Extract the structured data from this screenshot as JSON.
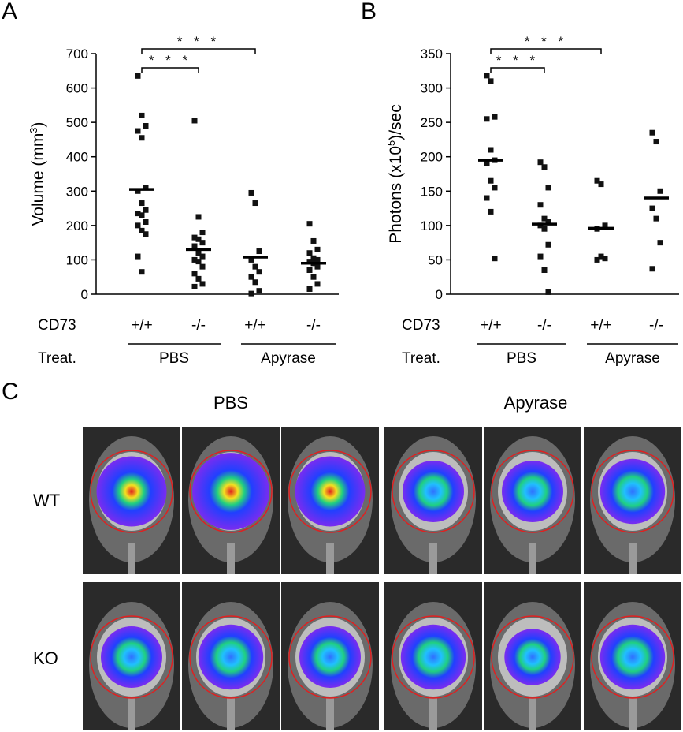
{
  "panels": {
    "a": "A",
    "b": "B",
    "c": "C"
  },
  "charts": [
    {
      "id": "A",
      "ylabel_main": "Volume (mm",
      "ylabel_sup": "3",
      "ylabel_end": ")",
      "ylim": [
        0,
        700
      ],
      "yticks": [
        0,
        100,
        200,
        300,
        400,
        500,
        600,
        700
      ],
      "row1_label": "CD73",
      "row2_label": "Treat.",
      "categories": [
        "+/+",
        "-/-",
        "+/+",
        "-/-"
      ],
      "groups": [
        "PBS",
        "Apyrase"
      ],
      "sig_label": "* * *",
      "means": [
        305,
        130,
        108,
        90
      ],
      "points": [
        [
          635,
          520,
          490,
          475,
          455,
          310,
          300,
          265,
          245,
          235,
          230,
          210,
          200,
          185,
          175,
          110,
          65
        ],
        [
          505,
          225,
          180,
          165,
          160,
          150,
          140,
          120,
          110,
          100,
          95,
          80,
          60,
          45,
          30,
          22
        ],
        [
          295,
          265,
          125,
          100,
          80,
          65,
          50,
          35,
          10,
          2
        ],
        [
          205,
          155,
          130,
          120,
          105,
          100,
          95,
          90,
          80,
          70,
          50,
          30,
          15
        ]
      ]
    },
    {
      "id": "B",
      "ylabel_main": "Photons (x10",
      "ylabel_sup": "5",
      "ylabel_end": ")/sec",
      "ylim": [
        0,
        350
      ],
      "yticks": [
        0,
        50,
        100,
        150,
        200,
        250,
        300,
        350
      ],
      "row1_label": "CD73",
      "row2_label": "Treat.",
      "categories": [
        "+/+",
        "-/-",
        "+/+",
        "-/-"
      ],
      "groups": [
        "PBS",
        "Apyrase"
      ],
      "sig_label": "* * *",
      "means": [
        195,
        102,
        96,
        140
      ],
      "points": [
        [
          318,
          310,
          258,
          255,
          210,
          195,
          190,
          165,
          155,
          140,
          120,
          52
        ],
        [
          192,
          185,
          155,
          130,
          110,
          105,
          100,
          95,
          72,
          55,
          35,
          3
        ],
        [
          165,
          160,
          100,
          95,
          55,
          52,
          50
        ],
        [
          235,
          222,
          150,
          125,
          110,
          75,
          37
        ]
      ]
    }
  ],
  "panel_c": {
    "col_headers": [
      "PBS",
      "Apyrase"
    ],
    "row_labels": [
      "WT",
      "KO"
    ],
    "images": [
      [
        {
          "signal": "high"
        },
        {
          "signal": "very-high"
        },
        {
          "signal": "high"
        },
        {
          "signal": "low"
        },
        {
          "signal": "low"
        },
        {
          "signal": "medium"
        }
      ],
      [
        {
          "signal": "low"
        },
        {
          "signal": "medium"
        },
        {
          "signal": "low"
        },
        {
          "signal": "medium"
        },
        {
          "signal": "very-low"
        },
        {
          "signal": "medium"
        }
      ]
    ],
    "colors": {
      "roi_circle": "#e02020",
      "background": "#2a2a2a"
    }
  }
}
